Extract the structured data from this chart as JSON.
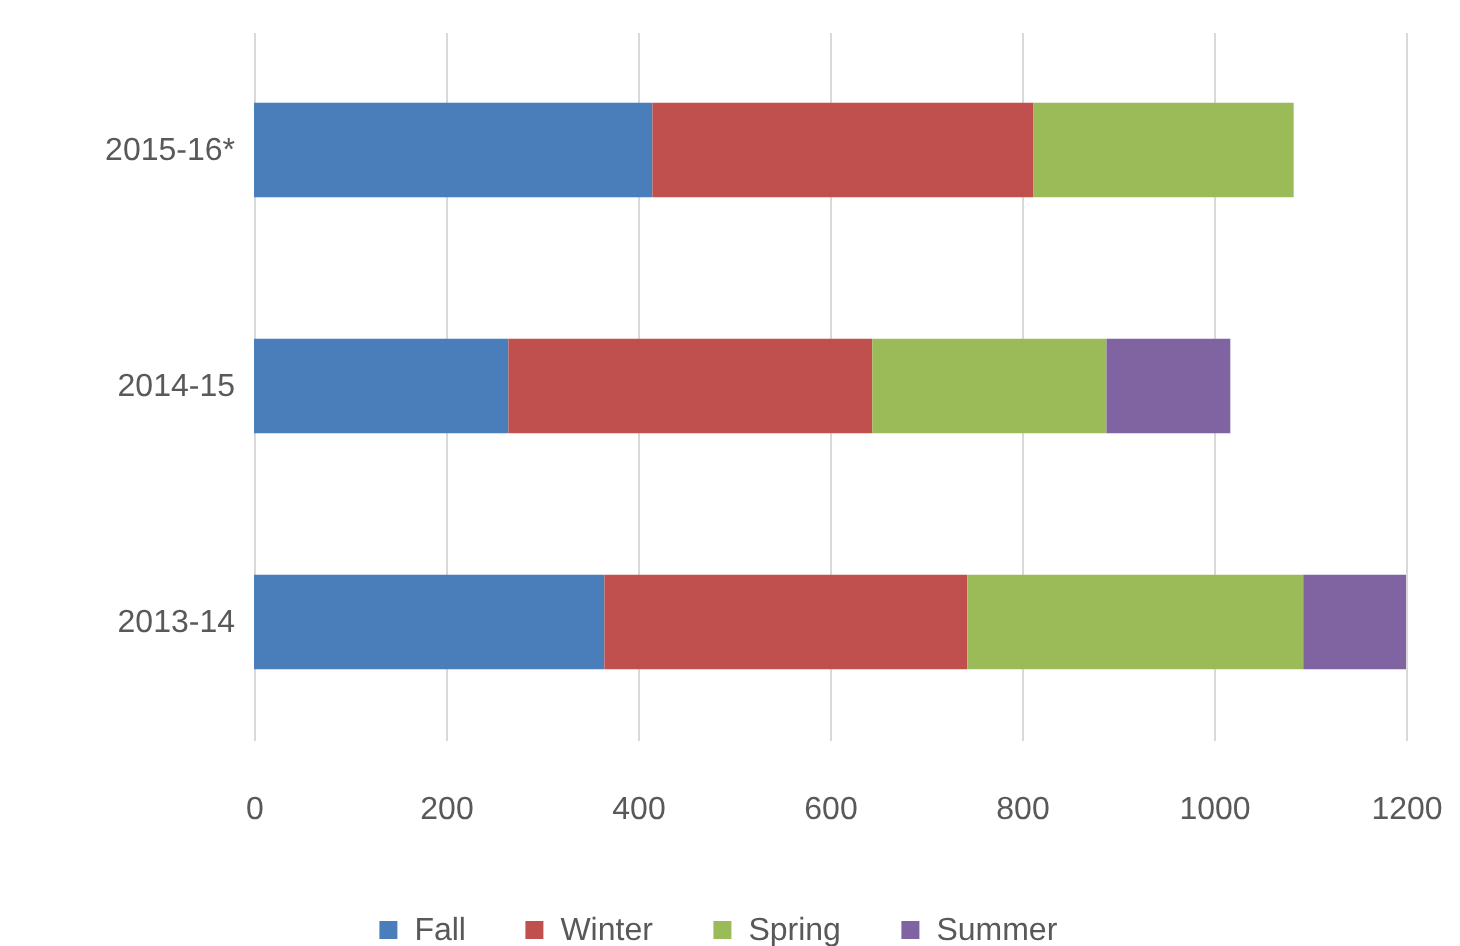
{
  "chart_data": {
    "type": "bar",
    "orientation": "horizontal",
    "stacked": true,
    "categories": [
      "2015-16*",
      "2014-15",
      "2013-14"
    ],
    "series": [
      {
        "name": "Fall",
        "color": "#4a7ebb",
        "values": [
          415,
          265,
          365
        ]
      },
      {
        "name": "Winter",
        "color": "#c0504d",
        "values": [
          397,
          379,
          378
        ]
      },
      {
        "name": "Spring",
        "color": "#9bbb59",
        "values": [
          271,
          244,
          350
        ]
      },
      {
        "name": "Summer",
        "color": "#8064a2",
        "values": [
          null,
          129,
          107
        ]
      }
    ],
    "xlim": [
      0,
      1200
    ],
    "xticks": [
      0,
      200,
      400,
      600,
      800,
      1000,
      1200
    ],
    "grid": "x",
    "legend": "bottom"
  }
}
